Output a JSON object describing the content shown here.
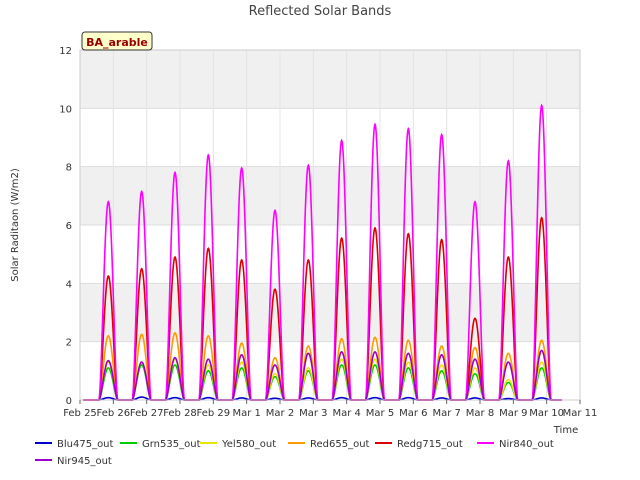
{
  "chart_data": {
    "type": "line",
    "title": "Reflected Solar Bands",
    "xlabel": "Time",
    "ylabel": "Solar Raditaon (W/m2)",
    "site_label": "BA_arable",
    "ylim": [
      0,
      12
    ],
    "xlim": [
      0,
      15
    ],
    "yticks": [
      0,
      2,
      4,
      6,
      8,
      10,
      12
    ],
    "xticks": [
      {
        "pos": 0,
        "label": "Feb 25"
      },
      {
        "pos": 1,
        "label": "Feb 26"
      },
      {
        "pos": 2,
        "label": "Feb 27"
      },
      {
        "pos": 3,
        "label": "Feb 28"
      },
      {
        "pos": 4,
        "label": "Feb 29"
      },
      {
        "pos": 5,
        "label": "Mar 1"
      },
      {
        "pos": 6,
        "label": "Mar 2"
      },
      {
        "pos": 7,
        "label": "Mar 3"
      },
      {
        "pos": 8,
        "label": "Mar 4"
      },
      {
        "pos": 9,
        "label": "Mar 5"
      },
      {
        "pos": 10,
        "label": "Mar 6"
      },
      {
        "pos": 11,
        "label": "Mar 7"
      },
      {
        "pos": 12,
        "label": "Mar 8"
      },
      {
        "pos": 13,
        "label": "Mar 9"
      },
      {
        "pos": 14,
        "label": "Mar 10"
      },
      {
        "pos": 15,
        "label": "Mar 11"
      }
    ],
    "grid": true,
    "legend_position": "bottom",
    "day_noon_offsets": [
      0.85,
      1.85,
      2.85,
      3.85,
      4.85,
      5.85,
      6.85,
      7.85,
      8.85,
      9.85,
      10.85,
      11.85,
      12.85,
      13.85
    ],
    "series": [
      {
        "name": "Blu475_out",
        "color": "#0000cc",
        "daily_peaks": [
          0.08,
          0.1,
          0.08,
          0.08,
          0.07,
          0.06,
          0.07,
          0.08,
          0.08,
          0.08,
          0.07,
          0.07,
          0.05,
          0.07
        ]
      },
      {
        "name": "Grn535_out",
        "color": "#00cc00",
        "daily_peaks": [
          1.1,
          1.2,
          1.2,
          1.0,
          1.1,
          0.8,
          1.0,
          1.2,
          1.2,
          1.1,
          1.0,
          0.9,
          0.6,
          1.1
        ]
      },
      {
        "name": "Yel580_out",
        "color": "#e6e600",
        "daily_peaks": [
          1.3,
          1.3,
          1.4,
          1.2,
          1.3,
          0.9,
          1.1,
          1.4,
          1.4,
          1.3,
          1.2,
          1.1,
          0.7,
          1.3
        ]
      },
      {
        "name": "Red655_out",
        "color": "#ff9900",
        "daily_peaks": [
          2.2,
          2.25,
          2.3,
          2.2,
          1.95,
          1.45,
          1.85,
          2.1,
          2.15,
          2.05,
          1.85,
          1.8,
          1.6,
          2.05
        ]
      },
      {
        "name": "Redg715_out",
        "color": "#dd0000",
        "daily_peaks": [
          4.25,
          4.5,
          4.9,
          5.2,
          4.8,
          3.8,
          4.8,
          5.55,
          5.9,
          5.7,
          5.5,
          2.8,
          4.9,
          6.25
        ]
      },
      {
        "name": "Nir840_out",
        "color": "#ff00ff",
        "daily_peaks": [
          6.8,
          7.15,
          7.8,
          8.4,
          7.95,
          6.5,
          8.05,
          8.9,
          9.45,
          9.3,
          9.1,
          6.8,
          8.2,
          10.1
        ]
      },
      {
        "name": "Nir945_out",
        "color": "#9900cc",
        "daily_peaks": [
          1.35,
          1.3,
          1.45,
          1.4,
          1.55,
          1.2,
          1.6,
          1.65,
          1.65,
          1.6,
          1.55,
          1.4,
          1.3,
          1.7
        ]
      }
    ]
  }
}
